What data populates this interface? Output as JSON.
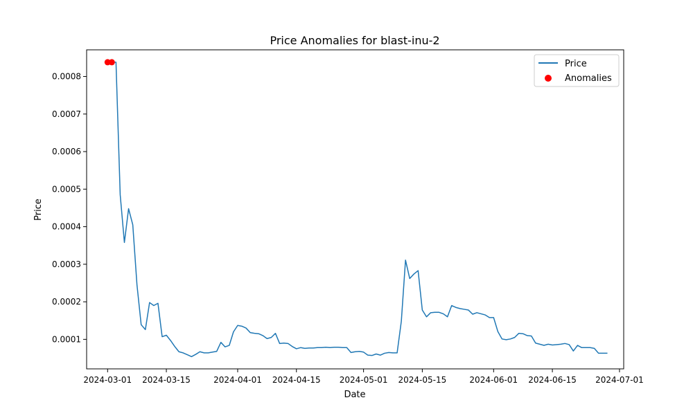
{
  "chart_data": {
    "type": "line",
    "title": "Price Anomalies for blast-inu-2",
    "xlabel": "Date",
    "ylabel": "Price",
    "x_axis_type": "date",
    "xlim": [
      "2024-02-25",
      "2024-07-02"
    ],
    "ylim": [
      2.14e-05,
      0.000871
    ],
    "x_ticks": [
      "2024-03-01",
      "2024-03-15",
      "2024-04-01",
      "2024-04-15",
      "2024-05-01",
      "2024-05-15",
      "2024-06-01",
      "2024-06-15",
      "2024-07-01"
    ],
    "y_ticks": [
      0.0001,
      0.0002,
      0.0003,
      0.0004,
      0.0005,
      0.0006,
      0.0007,
      0.0008
    ],
    "y_tick_labels": [
      "0.0001",
      "0.0002",
      "0.0003",
      "0.0004",
      "0.0005",
      "0.0006",
      "0.0007",
      "0.0008"
    ],
    "grid": false,
    "legend": {
      "position": "top-right",
      "entries": [
        "Price",
        "Anomalies"
      ]
    },
    "colors": {
      "price": "#1f77b4",
      "anomalies": "#ff0000"
    },
    "series": [
      {
        "name": "Price",
        "style": "line",
        "x": [
          "2024-03-01",
          "2024-03-02",
          "2024-03-03",
          "2024-03-04",
          "2024-03-05",
          "2024-03-06",
          "2024-03-07",
          "2024-03-08",
          "2024-03-09",
          "2024-03-10",
          "2024-03-11",
          "2024-03-12",
          "2024-03-13",
          "2024-03-14",
          "2024-03-15",
          "2024-03-16",
          "2024-03-17",
          "2024-03-18",
          "2024-03-19",
          "2024-03-20",
          "2024-03-21",
          "2024-03-22",
          "2024-03-23",
          "2024-03-24",
          "2024-03-25",
          "2024-03-26",
          "2024-03-27",
          "2024-03-28",
          "2024-03-29",
          "2024-03-30",
          "2024-03-31",
          "2024-04-01",
          "2024-04-02",
          "2024-04-03",
          "2024-04-04",
          "2024-04-05",
          "2024-04-06",
          "2024-04-07",
          "2024-04-08",
          "2024-04-09",
          "2024-04-10",
          "2024-04-11",
          "2024-04-12",
          "2024-04-13",
          "2024-04-14",
          "2024-04-15",
          "2024-04-16",
          "2024-04-17",
          "2024-04-18",
          "2024-04-19",
          "2024-04-20",
          "2024-04-21",
          "2024-04-22",
          "2024-04-23",
          "2024-04-24",
          "2024-04-25",
          "2024-04-26",
          "2024-04-27",
          "2024-04-28",
          "2024-04-29",
          "2024-04-30",
          "2024-05-01",
          "2024-05-02",
          "2024-05-03",
          "2024-05-04",
          "2024-05-05",
          "2024-05-06",
          "2024-05-07",
          "2024-05-08",
          "2024-05-09",
          "2024-05-10",
          "2024-05-11",
          "2024-05-12",
          "2024-05-13",
          "2024-05-14",
          "2024-05-15",
          "2024-05-16",
          "2024-05-17",
          "2024-05-18",
          "2024-05-19",
          "2024-05-20",
          "2024-05-21",
          "2024-05-22",
          "2024-05-23",
          "2024-05-24",
          "2024-05-25",
          "2024-05-26",
          "2024-05-27",
          "2024-05-28",
          "2024-05-29",
          "2024-05-30",
          "2024-05-31",
          "2024-06-01",
          "2024-06-02",
          "2024-06-03",
          "2024-06-04",
          "2024-06-05",
          "2024-06-06",
          "2024-06-07",
          "2024-06-08",
          "2024-06-09",
          "2024-06-10",
          "2024-06-11",
          "2024-06-12",
          "2024-06-13",
          "2024-06-14",
          "2024-06-15",
          "2024-06-16",
          "2024-06-17",
          "2024-06-18",
          "2024-06-19",
          "2024-06-20",
          "2024-06-21",
          "2024-06-22",
          "2024-06-23",
          "2024-06-24",
          "2024-06-25",
          "2024-06-26",
          "2024-06-27",
          "2024-06-28"
        ],
        "values": [
          0.000838,
          0.000838,
          0.000838,
          0.000485,
          0.000358,
          0.000448,
          0.000405,
          0.000245,
          0.000139,
          0.000126,
          0.000198,
          0.00019,
          0.000196,
          0.000107,
          0.000111,
          9.7e-05,
          8.1e-05,
          6.7e-05,
          6.4e-05,
          5.9e-05,
          5.4e-05,
          6e-05,
          6.7e-05,
          6.4e-05,
          6.4e-05,
          6.6e-05,
          6.8e-05,
          9.2e-05,
          8e-05,
          8.4e-05,
          0.00012,
          0.000137,
          0.000135,
          0.00013,
          0.000118,
          0.000116,
          0.000115,
          0.00011,
          0.000102,
          0.000105,
          0.000116,
          8.9e-05,
          9e-05,
          8.9e-05,
          8.1e-05,
          7.5e-05,
          7.8e-05,
          7.6e-05,
          7.7e-05,
          7.7e-05,
          7.8e-05,
          7.8e-05,
          7.9e-05,
          7.8e-05,
          7.9e-05,
          7.9e-05,
          7.8e-05,
          7.8e-05,
          6.5e-05,
          6.7e-05,
          6.8e-05,
          6.6e-05,
          5.8e-05,
          5.7e-05,
          6.1e-05,
          5.8e-05,
          6.3e-05,
          6.5e-05,
          6.4e-05,
          6.4e-05,
          0.000148,
          0.000311,
          0.000262,
          0.000274,
          0.000283,
          0.000178,
          0.00016,
          0.000171,
          0.000172,
          0.000172,
          0.000168,
          0.00016,
          0.00019,
          0.000185,
          0.000182,
          0.00018,
          0.000178,
          0.000167,
          0.000171,
          0.000168,
          0.000165,
          0.000158,
          0.000158,
          0.000121,
          0.000101,
          9.9e-05,
          0.000101,
          0.000105,
          0.000116,
          0.000115,
          0.00011,
          0.000109,
          9e-05,
          8.7e-05,
          8.4e-05,
          8.7e-05,
          8.5e-05,
          8.6e-05,
          8.7e-05,
          8.9e-05,
          8.6e-05,
          6.9e-05,
          8.4e-05,
          7.8e-05,
          7.8e-05,
          7.8e-05,
          7.6e-05,
          6.3e-05,
          6.3e-05,
          6.3e-05
        ]
      },
      {
        "name": "Anomalies",
        "style": "scatter",
        "x": [
          "2024-03-01",
          "2024-03-02"
        ],
        "values": [
          0.000838,
          0.000838
        ]
      }
    ]
  }
}
